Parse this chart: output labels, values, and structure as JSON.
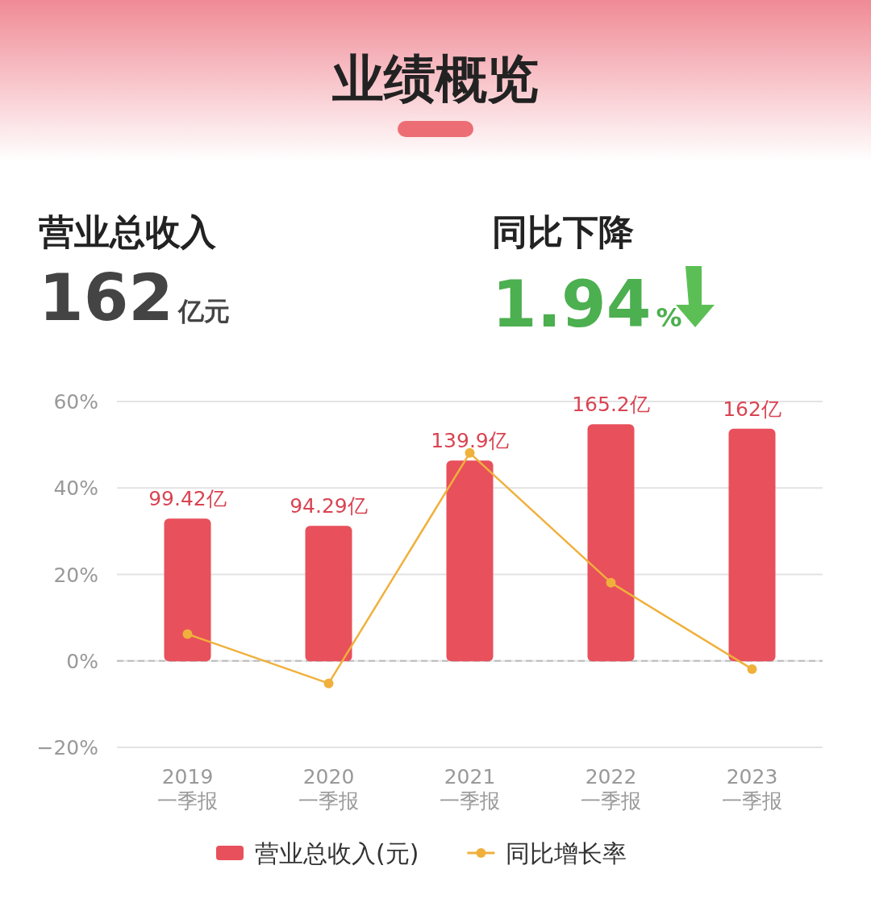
{
  "chart_data": {
    "type": "bar",
    "title": "业绩概览",
    "annotations": [
      "营业总收入",
      "162亿元",
      "同比下降",
      "1.94%"
    ],
    "categories": [
      "2019 一季报",
      "2020 一季报",
      "2021 一季报",
      "2022 一季报",
      "2023 一季报"
    ],
    "series": [
      {
        "name": "营业总收入(元)",
        "axis": "y2",
        "color": "#e8505b",
        "values": [
          99.42,
          94.29,
          139.9,
          165.2,
          162
        ],
        "value_labels": [
          "99.42亿",
          "94.29亿",
          "139.9亿",
          "165.2亿",
          "162亿"
        ]
      },
      {
        "name": "同比增长率",
        "type": "line",
        "color": "#f0b03c",
        "marker": "circle",
        "values": [
          6.2,
          -5.2,
          48.1,
          18.1,
          -1.9
        ]
      }
    ],
    "ylim": [
      -20,
      60
    ],
    "yticks": [
      {
        "value": -20,
        "label": "−20%"
      },
      {
        "value": 0,
        "label": "0%"
      },
      {
        "value": 20,
        "label": "20%"
      },
      {
        "value": 40,
        "label": "40%"
      },
      {
        "value": 60,
        "label": "60%"
      }
    ],
    "y2lim": [
      -60,
      181
    ],
    "tick_labels": "xy",
    "grid": "y",
    "ref_lines": [
      {
        "axis": "y",
        "value": 0,
        "line_style": "dashed",
        "color": "#bbbbbb"
      }
    ],
    "legend": "bottom"
  }
}
